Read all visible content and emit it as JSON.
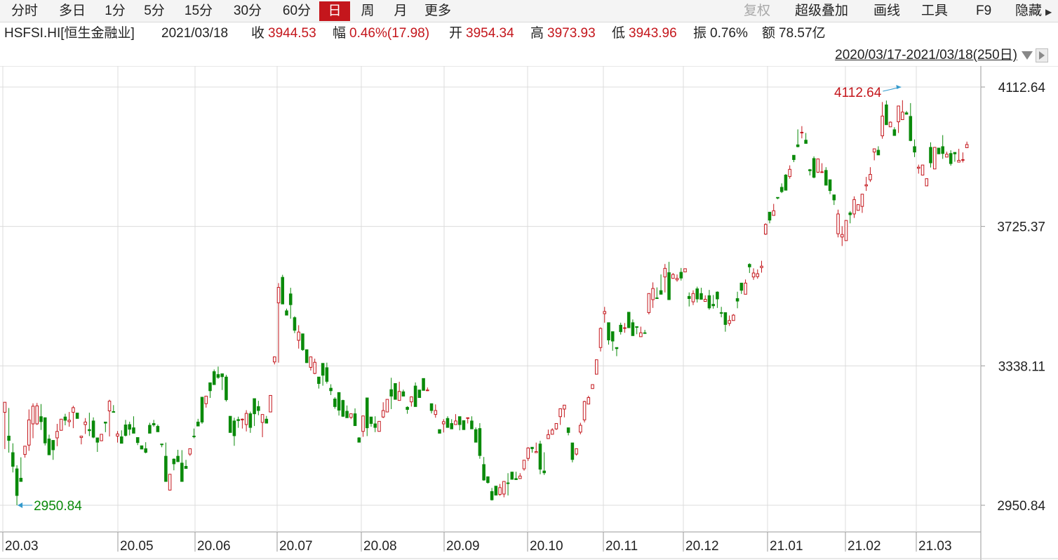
{
  "toolbar": {
    "periods": [
      "分时",
      "多日",
      "1分",
      "5分",
      "15分",
      "30分",
      "60分",
      "日",
      "周",
      "月",
      "更多"
    ],
    "active_period": "日",
    "tools": {
      "restore_rights": "复权",
      "overlay": "超级叠加",
      "draw_line": "画线",
      "tools": "工具",
      "f9": "F9",
      "hide": "隐藏"
    }
  },
  "info": {
    "symbol": "HSFSI.HI[恒生金融业]",
    "date": "2021/03/18",
    "close_label": "收",
    "close": "3944.53",
    "change_label": "幅",
    "change": "0.46%(17.98)",
    "open_label": "开",
    "open": "3954.34",
    "high_label": "高",
    "high": "3973.93",
    "low_label": "低",
    "low": "3943.96",
    "amplitude_label": "振",
    "amplitude": "0.76%",
    "amount_label": "额",
    "amount": "78.57亿"
  },
  "range": {
    "text": "2020/03/17-2021/03/18(250日)"
  },
  "colors": {
    "up": "#c4161c",
    "down": "#0a8a0a",
    "active_tab": "#c4161c",
    "grid": "#dcdcdc",
    "marker_arrow": "#3399cc"
  },
  "chart_data": {
    "type": "candlestick",
    "x_ticks": [
      "20.03",
      "20.05",
      "20.06",
      "20.07",
      "20.08",
      "20.09",
      "20.10",
      "20.11",
      "20.12",
      "21.01",
      "21.02",
      "21.03"
    ],
    "y_ticks": [
      "4112.64",
      "3725.37",
      "3338.11",
      "2950.84"
    ],
    "ylim": [
      2950.84,
      4112.64
    ],
    "max_marker": "4112.64",
    "min_marker": "2950.84",
    "candles": [
      [
        3209,
        3237,
        3137,
        3107
      ],
      [
        3143,
        3131,
        3221,
        3097
      ],
      [
        3097,
        3059,
        3123,
        3042
      ],
      [
        3052,
        2978,
        3062,
        2951
      ],
      [
        3026,
        3017,
        3084,
        3017
      ],
      [
        3092,
        3115,
        3105,
        3083
      ],
      [
        3118,
        3188,
        3217,
        3102
      ],
      [
        3177,
        3226,
        3234,
        3137
      ],
      [
        3177,
        3227,
        3235,
        3174
      ],
      [
        3197,
        3183,
        3232,
        3160
      ],
      [
        3194,
        3124,
        3190,
        3117
      ],
      [
        3135,
        3091,
        3147,
        3094
      ],
      [
        3131,
        3105,
        3125,
        3077
      ],
      [
        3138,
        3156,
        3177,
        3115
      ],
      [
        3159,
        3190,
        3162,
        3165
      ],
      [
        3196,
        3187,
        3205,
        3173
      ],
      [
        3183,
        3187,
        3210,
        3169
      ],
      [
        3209,
        3222,
        3227,
        3165
      ],
      [
        3207,
        3192,
        3202,
        3199
      ],
      [
        3139,
        3143,
        3139,
        3120
      ],
      [
        3175,
        3182,
        3193,
        3149
      ],
      [
        3161,
        3158,
        3208,
        3143
      ],
      [
        3185,
        3140,
        3195,
        3137
      ],
      [
        3138,
        3126,
        3130,
        3099
      ],
      [
        3130,
        3148,
        3135,
        3129
      ],
      [
        3182,
        3179,
        3181,
        3154
      ],
      [
        3213,
        3240,
        3244,
        3142
      ],
      [
        3211,
        3210,
        3229,
        3212
      ],
      [
        3143,
        3149,
        3157,
        3125
      ],
      [
        3141,
        3123,
        3159,
        3123
      ],
      [
        3174,
        3145,
        3188,
        3142
      ],
      [
        3175,
        3162,
        3183,
        3145
      ],
      [
        3166,
        3151,
        3198,
        3151
      ],
      [
        3139,
        3125,
        3121,
        3118
      ],
      [
        3116,
        3107,
        3108,
        3113
      ],
      [
        3108,
        3098,
        3126,
        3095
      ],
      [
        3173,
        3151,
        3180,
        3156
      ],
      [
        3178,
        3174,
        3188,
        3169
      ],
      [
        3170,
        3155,
        3175,
        3171
      ],
      [
        3121,
        3119,
        3116,
        3112
      ],
      [
        3087,
        3017,
        3125,
        3019
      ],
      [
        2993,
        3037,
        2992,
        2993
      ],
      [
        3079,
        3066,
        3081,
        3048
      ],
      [
        3087,
        3072,
        3105,
        3071
      ],
      [
        3068,
        3017,
        3104,
        3019
      ],
      [
        3059,
        3053,
        3077,
        3063
      ],
      [
        3093,
        3108,
        3106,
        3088
      ],
      [
        3143,
        3142,
        3164,
        3137
      ],
      [
        3182,
        3171,
        3191,
        3186
      ],
      [
        3251,
        3182,
        3247,
        3177
      ],
      [
        3233,
        3254,
        3255,
        3222
      ],
      [
        3291,
        3269,
        3284,
        3249
      ],
      [
        3322,
        3286,
        3328,
        3286
      ],
      [
        3314,
        3306,
        3336,
        3302
      ],
      [
        3316,
        3308,
        3316,
        3271
      ],
      [
        3307,
        3244,
        3313,
        3239
      ],
      [
        3198,
        3153,
        3197,
        3154
      ],
      [
        3185,
        3144,
        3194,
        3116
      ],
      [
        3189,
        3186,
        3197,
        3166
      ],
      [
        3188,
        3190,
        3192,
        3164
      ],
      [
        3175,
        3206,
        3215,
        3156
      ],
      [
        3205,
        3167,
        3211,
        3152
      ],
      [
        3247,
        3205,
        3242,
        3171
      ],
      [
        3225,
        3214,
        3241,
        3201
      ],
      [
        3181,
        3203,
        3181,
        3140
      ],
      [
        3190,
        3179,
        3199,
        3184
      ],
      [
        3210,
        3256,
        3243,
        3212
      ],
      [
        3349,
        3363,
        3342,
        3364
      ],
      [
        3513,
        3556,
        3568,
        3347
      ],
      [
        3584,
        3510,
        3591,
        3532
      ],
      [
        3491,
        3479,
        3497,
        3480
      ],
      [
        3538,
        3508,
        3555,
        3469
      ],
      [
        3472,
        3437,
        3476,
        3429
      ],
      [
        3409,
        3432,
        3451,
        3386
      ],
      [
        3427,
        3383,
        3407,
        3380
      ],
      [
        3383,
        3347,
        3372,
        3346
      ],
      [
        3334,
        3363,
        3354,
        3325
      ],
      [
        3317,
        3348,
        3358,
        3315
      ],
      [
        3307,
        3289,
        3297,
        3275
      ],
      [
        3345,
        3312,
        3336,
        3283
      ],
      [
        3333,
        3295,
        3347,
        3289
      ],
      [
        3276,
        3269,
        3257,
        3287
      ],
      [
        3246,
        3225,
        3251,
        3219
      ],
      [
        3264,
        3215,
        3257,
        3200
      ],
      [
        3242,
        3198,
        3244,
        3196
      ],
      [
        3212,
        3194,
        3228,
        3198
      ],
      [
        3195,
        3205,
        3190,
        3200
      ],
      [
        3205,
        3172,
        3220,
        3182
      ],
      [
        3138,
        3126,
        3140,
        3133
      ],
      [
        3156,
        3199,
        3159,
        3141
      ],
      [
        3249,
        3166,
        3198,
        3143
      ],
      [
        3196,
        3178,
        3196,
        3169
      ],
      [
        3177,
        3167,
        3198,
        3154
      ],
      [
        3156,
        3184,
        3170,
        3162
      ],
      [
        3196,
        3214,
        3237,
        3193
      ],
      [
        3210,
        3245,
        3234,
        3217
      ],
      [
        3272,
        3254,
        3305,
        3218
      ],
      [
        3289,
        3245,
        3268,
        3251
      ],
      [
        3242,
        3267,
        3294,
        3244
      ],
      [
        3266,
        3254,
        3272,
        3258
      ],
      [
        3223,
        3217,
        3226,
        3205
      ],
      [
        3238,
        3252,
        3225,
        3244
      ],
      [
        3282,
        3225,
        3292,
        3234
      ],
      [
        3271,
        3250,
        3270,
        3253
      ],
      [
        3303,
        3270,
        3296,
        3278
      ],
      [
        3269,
        3271,
        3268,
        3278
      ],
      [
        3233,
        3214,
        3230,
        3206
      ],
      [
        3203,
        3214,
        3231,
        3194
      ],
      [
        3161,
        3151,
        3155,
        3153
      ],
      [
        3177,
        3183,
        3190,
        3153
      ],
      [
        3192,
        3167,
        3198,
        3196
      ],
      [
        3178,
        3163,
        3190,
        3174
      ],
      [
        3175,
        3185,
        3204,
        3180
      ],
      [
        3197,
        3175,
        3159,
        3175
      ],
      [
        3186,
        3161,
        3169,
        3170
      ],
      [
        3194,
        3194,
        3183,
        3178
      ],
      [
        3185,
        3163,
        3198,
        3167
      ],
      [
        3161,
        3126,
        3152,
        3167
      ],
      [
        3164,
        3089,
        3179,
        3080
      ],
      [
        3064,
        3021,
        3085,
        3019
      ],
      [
        3030,
        3014,
        3031,
        3011
      ],
      [
        2989,
        2966,
        2999,
        2964
      ],
      [
        3004,
        2979,
        2981,
        2981
      ],
      [
        2981,
        3000,
        3010,
        2977
      ],
      [
        2982,
        3017,
        3013,
        2973
      ],
      [
        3013,
        3012,
        3040,
        2978
      ],
      [
        3043,
        3023,
        3022,
        3029
      ],
      [
        3025,
        3022,
        3044,
        3024
      ],
      [
        3025,
        3032,
        3040,
        3035
      ],
      [
        3052,
        3076,
        3059,
        3047
      ],
      [
        3081,
        3110,
        3112,
        3074
      ],
      [
        3112,
        3108,
        3112,
        3097
      ],
      [
        3097,
        3100,
        3125,
        3103
      ],
      [
        3121,
        3051,
        3130,
        3037
      ],
      [
        3046,
        3041,
        3098,
        3035
      ],
      [
        3136,
        3147,
        3161,
        3149
      ],
      [
        3148,
        3160,
        3165,
        3149
      ],
      [
        3163,
        3178,
        3174,
        3160
      ],
      [
        3197,
        3219,
        3205,
        3174
      ],
      [
        3218,
        3229,
        3228,
        3195
      ],
      [
        3166,
        3153,
        3159,
        3145
      ],
      [
        3124,
        3078,
        3109,
        3070
      ],
      [
        3093,
        3108,
        3099,
        3089
      ],
      [
        3154,
        3173,
        3180,
        3148
      ],
      [
        3188,
        3239,
        3241,
        3181
      ],
      [
        3232,
        3250,
        3255,
        3232
      ],
      [
        3275,
        3286,
        3286,
        3283
      ],
      [
        3315,
        3355,
        3353,
        3323
      ],
      [
        3389,
        3442,
        3445,
        3378
      ],
      [
        3483,
        3489,
        3502,
        3458
      ],
      [
        3458,
        3410,
        3449,
        3397
      ],
      [
        3433,
        3407,
        3430,
        3380
      ],
      [
        3389,
        3386,
        3385,
        3365
      ],
      [
        3451,
        3433,
        3458,
        3425
      ],
      [
        3442,
        3444,
        3457,
        3430
      ],
      [
        3487,
        3444,
        3486,
        3449
      ],
      [
        3458,
        3422,
        3467,
        3442
      ],
      [
        3447,
        3445,
        3436,
        3426
      ],
      [
        3419,
        3430,
        3447,
        3430
      ],
      [
        3430,
        3429,
        3438,
        3430
      ],
      [
        3486,
        3539,
        3481,
        3525
      ],
      [
        3522,
        3553,
        3570,
        3499
      ],
      [
        3527,
        3525,
        3549,
        3556
      ],
      [
        3547,
        3537,
        3592,
        3557
      ],
      [
        3585,
        3609,
        3621,
        3542
      ],
      [
        3597,
        3522,
        3627,
        3541
      ],
      [
        3581,
        3592,
        3596,
        3590
      ],
      [
        3577,
        3581,
        3592,
        3572
      ],
      [
        3598,
        3582,
        3610,
        3575
      ],
      [
        3599,
        3608,
        3608,
        3602
      ],
      [
        3531,
        3525,
        3542,
        3503
      ],
      [
        3516,
        3539,
        3548,
        3507
      ],
      [
        3552,
        3524,
        3558,
        3514
      ],
      [
        3539,
        3523,
        3555,
        3526
      ],
      [
        3517,
        3523,
        3531,
        3534
      ],
      [
        3533,
        3499,
        3549,
        3494
      ],
      [
        3509,
        3505,
        3535,
        3497
      ],
      [
        3543,
        3524,
        3545,
        3499
      ],
      [
        3486,
        3484,
        3502,
        3473
      ],
      [
        3486,
        3453,
        3477,
        3433
      ],
      [
        3456,
        3464,
        3478,
        3449
      ],
      [
        3464,
        3479,
        3482,
        3467
      ],
      [
        3525,
        3518,
        3544,
        3498
      ],
      [
        3568,
        3548,
        3560,
        3538
      ],
      [
        3537,
        3568,
        3578,
        3550
      ],
      [
        3620,
        3613,
        3623,
        3596
      ],
      [
        3585,
        3596,
        3609,
        3577
      ],
      [
        3586,
        3594,
        3606,
        3580
      ],
      [
        3611,
        3615,
        3630,
        3597
      ],
      [
        3704,
        3731,
        3734,
        3702
      ],
      [
        3765,
        3743,
        3764,
        3734
      ],
      [
        3756,
        3769,
        3788,
        3756
      ],
      [
        3806,
        3805,
        3801,
        3803
      ],
      [
        3834,
        3822,
        3818,
        3845
      ],
      [
        3868,
        3826,
        3871,
        3827
      ],
      [
        3864,
        3884,
        3895,
        3858
      ],
      [
        3923,
        3911,
        3904,
        3913
      ],
      [
        3952,
        3947,
        3995,
        3945
      ],
      [
        3987,
        3987,
        4004,
        3970
      ],
      [
        3965,
        3956,
        3985,
        3975
      ],
      [
        3883,
        3880,
        3885,
        3867
      ],
      [
        3914,
        3862,
        3920,
        3859
      ],
      [
        3876,
        3913,
        3910,
        3874
      ],
      [
        3876,
        3877,
        3901,
        3880
      ],
      [
        3881,
        3840,
        3890,
        3852
      ],
      [
        3855,
        3825,
        3850,
        3815
      ],
      [
        3813,
        3799,
        3801,
        3785
      ],
      [
        3705,
        3760,
        3772,
        3695
      ],
      [
        3696,
        3703,
        3726,
        3671
      ],
      [
        3686,
        3742,
        3739,
        3720
      ],
      [
        3763,
        3758,
        3768,
        3734
      ],
      [
        3760,
        3800,
        3809,
        3749
      ],
      [
        3770,
        3786,
        3786,
        3780
      ],
      [
        3781,
        3815,
        3785,
        3763
      ],
      [
        3838,
        3841,
        3863,
        3824
      ],
      [
        3855,
        3870,
        3890,
        3849
      ],
      [
        3932,
        3941,
        3940,
        3909
      ],
      [
        3937,
        3924,
        3948,
        3933
      ],
      [
        3977,
        4032,
        4071,
        3969
      ],
      [
        4063,
        4008,
        4075,
        4029
      ],
      [
        4002,
        4015,
        4011,
        4017
      ],
      [
        3994,
        3978,
        4001,
        3993
      ],
      [
        4016,
        4060,
        4052,
        3985
      ],
      [
        4022,
        4043,
        4076,
        4040
      ],
      [
        4041,
        4037,
        4040,
        4046
      ],
      [
        4031,
        3964,
        4068,
        3962
      ],
      [
        3947,
        3932,
        3967,
        3918
      ],
      [
        3887,
        3890,
        3897,
        3872
      ],
      [
        3868,
        3896,
        3880,
        3876
      ],
      [
        3838,
        3858,
        3857,
        3839
      ],
      [
        3945,
        3902,
        3959,
        3889
      ],
      [
        3885,
        3945,
        3942,
        3889
      ],
      [
        3943,
        3927,
        3935,
        3927
      ],
      [
        3947,
        3928,
        3979,
        3913
      ],
      [
        3918,
        3926,
        3933,
        3925
      ],
      [
        3928,
        3900,
        3937,
        3894
      ],
      [
        3931,
        3927,
        3920,
        3905
      ],
      [
        3904,
        3909,
        3941,
        3907
      ],
      [
        3910,
        3911,
        3931,
        3903
      ],
      [
        3944,
        3953,
        3944,
        3961
      ]
    ]
  }
}
